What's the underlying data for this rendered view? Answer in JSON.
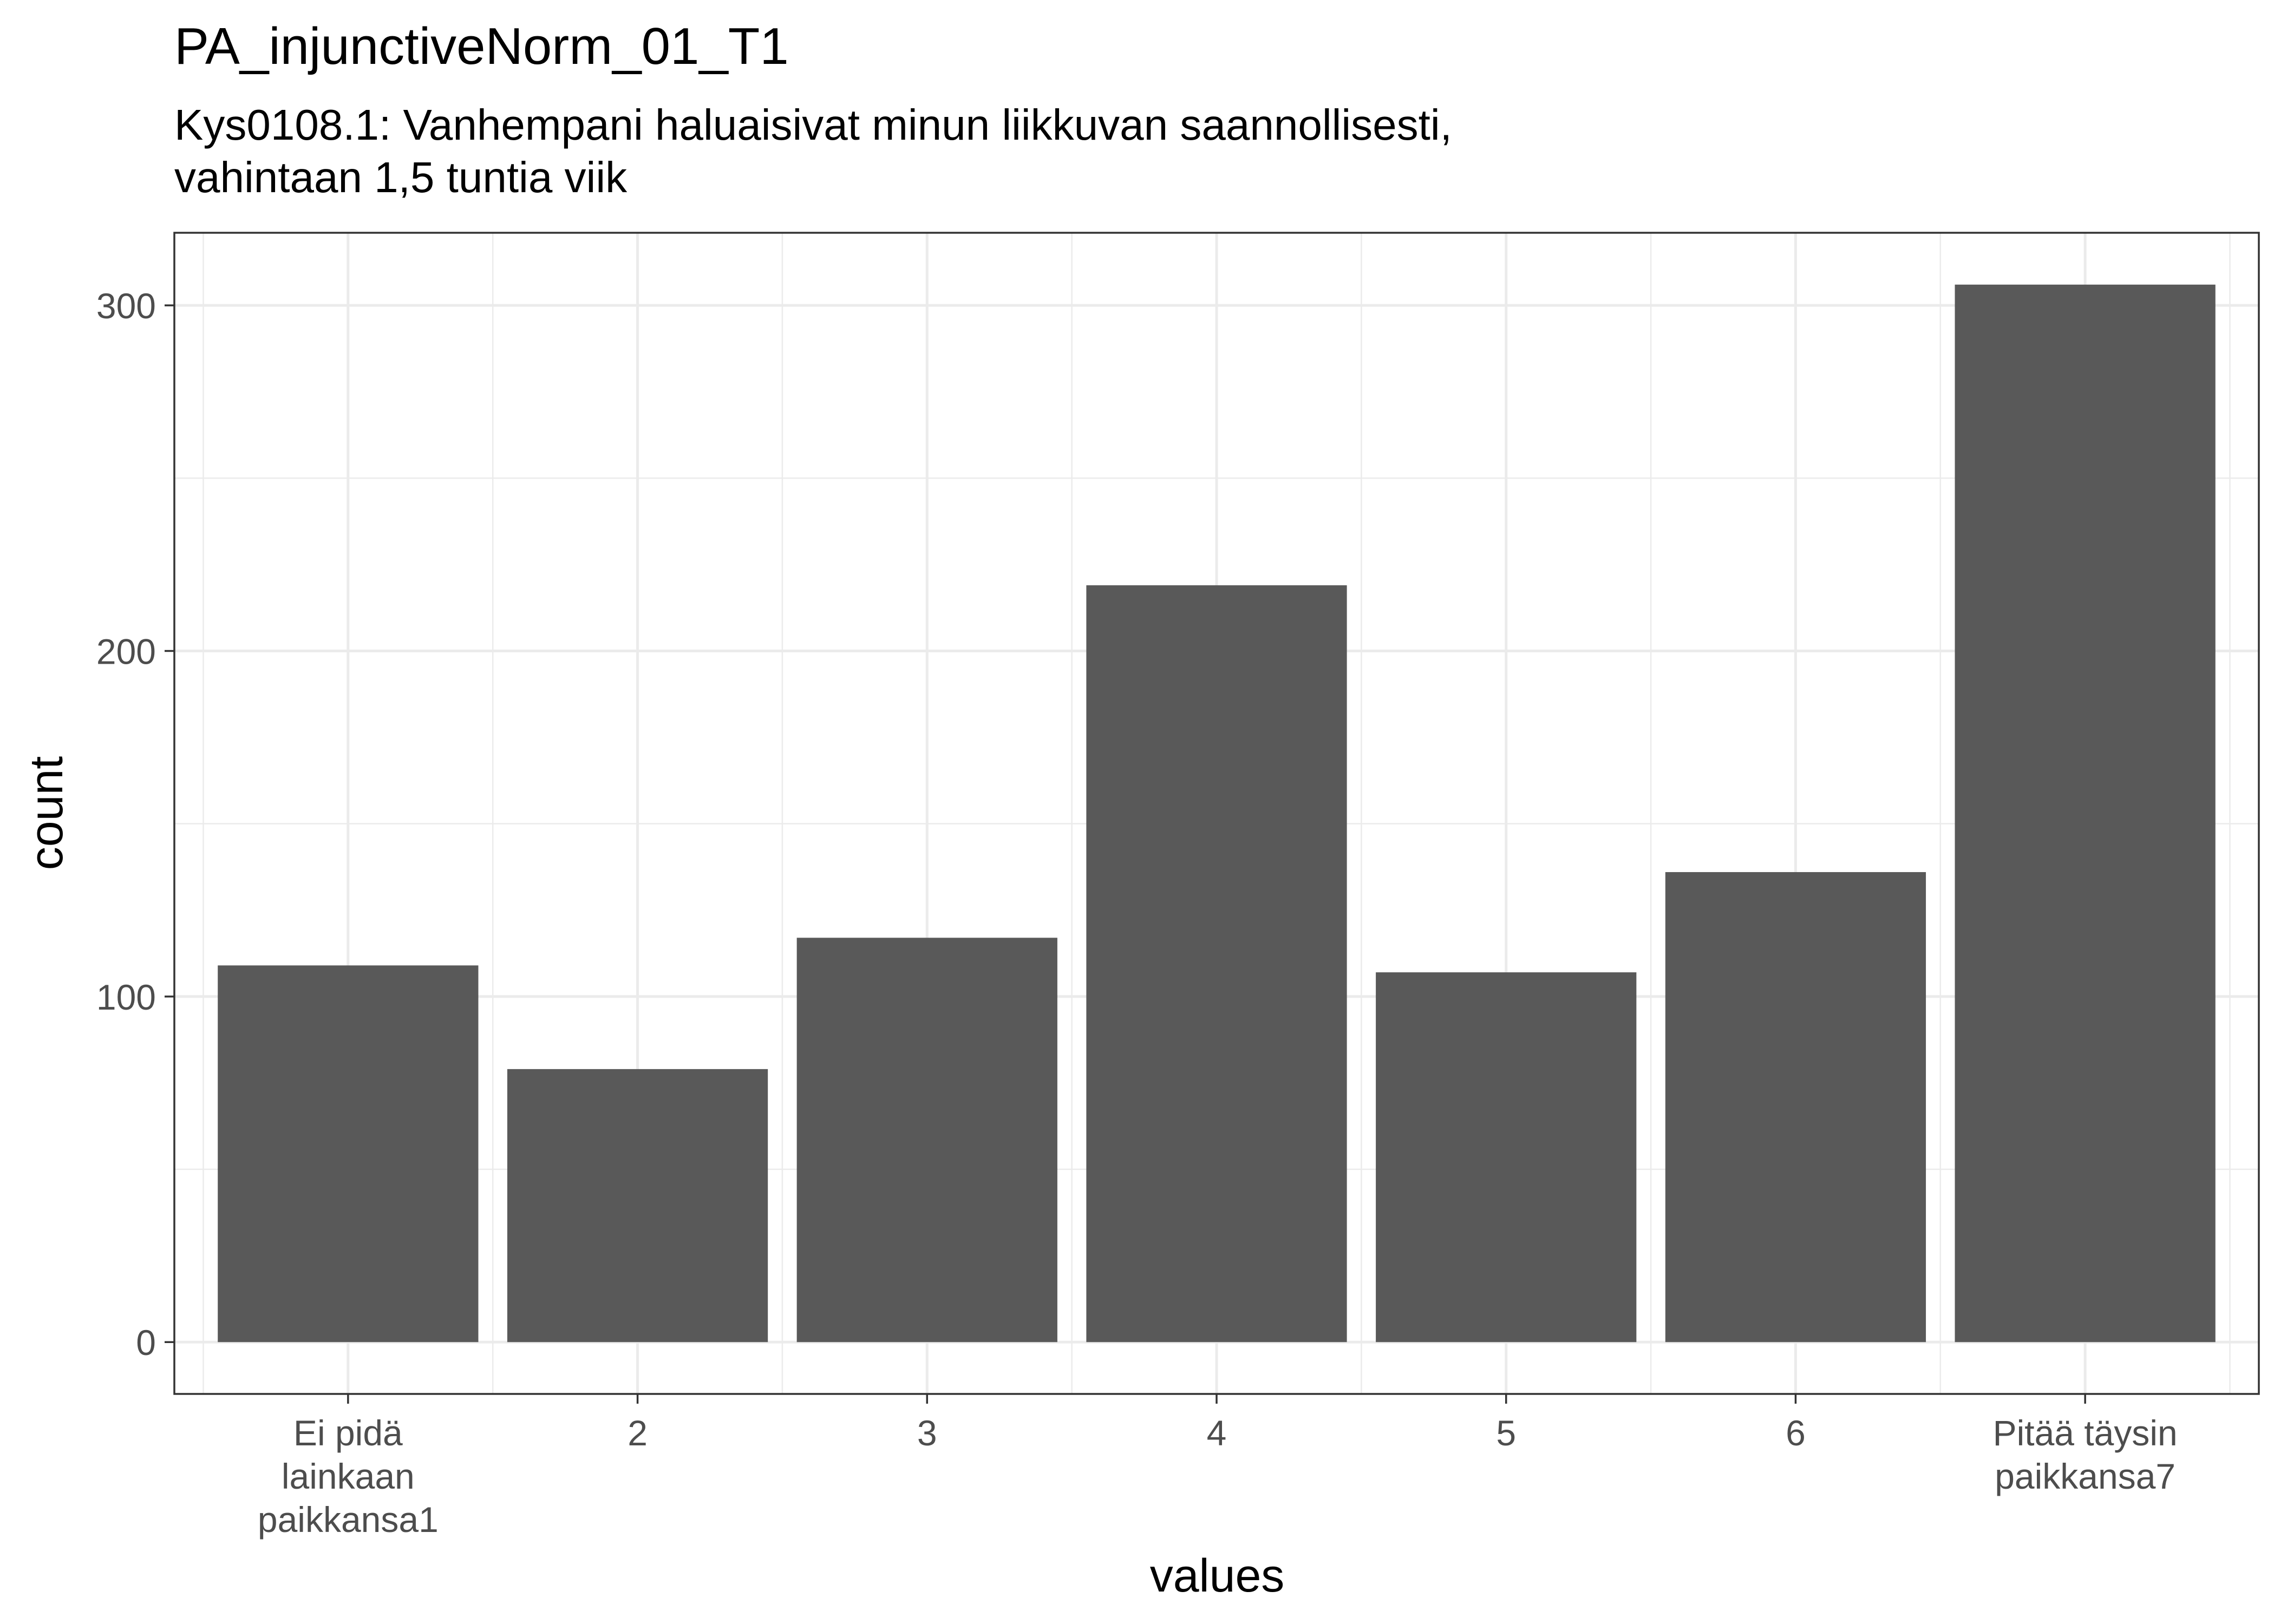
{
  "chart_data": {
    "type": "bar",
    "title": "PA_injunctiveNorm_01_T1",
    "subtitle_lines": [
      "Kys0108.1: Vanhempani haluaisivat minun liikkuvan saannollisesti,",
      "vahintaan 1,5 tuntia viik"
    ],
    "xlabel": "values",
    "ylabel": "count",
    "categories": [
      [
        "Ei pidä",
        "lainkaan",
        "paikkansa1"
      ],
      [
        "2"
      ],
      [
        "3"
      ],
      [
        "4"
      ],
      [
        "5"
      ],
      [
        "6"
      ],
      [
        "Pitää täysin",
        "paikkansa7"
      ]
    ],
    "values": [
      109,
      79,
      117,
      219,
      107,
      136,
      306
    ],
    "ylim": [
      -15,
      321
    ],
    "yticks": [
      0,
      100,
      200,
      300
    ],
    "grid": true,
    "bar_color": "#595959",
    "grid_color": "#ebebeb",
    "panel_border_color": "#333333"
  }
}
